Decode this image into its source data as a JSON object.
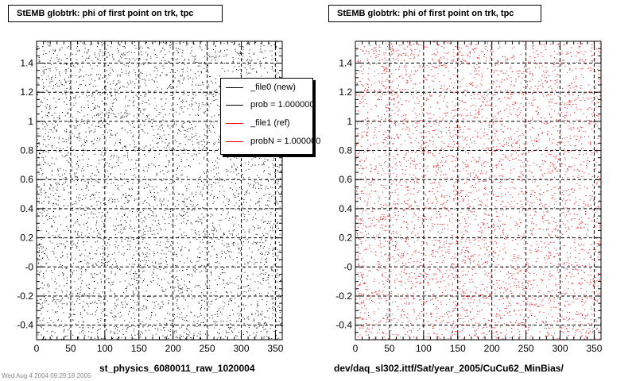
{
  "titles": {
    "left": "StEMB globtrk: phi of first point on trk, tpc",
    "right": "StEMB globtrk: phi of first point on trk, tpc"
  },
  "xtitles": {
    "left": "st_physics_6080011_raw_1020004",
    "right": "dev/daq_sl302.ittf/Sat/year_2005/CuCu62_MinBias/"
  },
  "footer": "Wed Aug  4  2004 09:29:18 2005",
  "legend": [
    {
      "label": "_file0 (new)",
      "color": "#000000"
    },
    {
      "label": "prob = 1.000000",
      "color": "#000000"
    },
    {
      "label": "_file1 (ref)",
      "color": "#ff0000"
    },
    {
      "label": "probN = 1.000000",
      "color": "#ff0000"
    }
  ],
  "chart_data": [
    {
      "type": "scatter",
      "title": "StEMB globtrk: phi of first point on trk, tpc",
      "xlabel": "st_physics_6080011_raw_1020004",
      "ylabel": "",
      "xlim": [
        0,
        360
      ],
      "ylim": [
        -0.5,
        1.55
      ],
      "xticks": [
        0,
        50,
        100,
        150,
        200,
        250,
        300,
        350
      ],
      "yticks": [
        -0.4,
        -0.2,
        0,
        0.2,
        0.4,
        0.6,
        0.8,
        1,
        1.2,
        1.4
      ],
      "ytick_labels": [
        "-0.4",
        "-0.2",
        "-0",
        "0.2",
        "0.4",
        "0.6",
        "0.8",
        "1",
        "1.2",
        "1.4"
      ],
      "grid": true,
      "legend_position": "top-right",
      "series": [
        {
          "name": "_file0 (new)",
          "color": "#000000",
          "points": 4500
        }
      ]
    },
    {
      "type": "scatter",
      "title": "StEMB globtrk: phi of first point on trk, tpc",
      "xlabel": "dev/daq_sl302.ittf/Sat/year_2005/CuCu62_MinBias/",
      "ylabel": "",
      "xlim": [
        0,
        360
      ],
      "ylim": [
        -0.5,
        1.55
      ],
      "xticks": [
        0,
        50,
        100,
        150,
        200,
        250,
        300,
        350
      ],
      "yticks": [
        -0.4,
        -0.2,
        0,
        0.2,
        0.4,
        0.6,
        0.8,
        1,
        1.2,
        1.4
      ],
      "ytick_labels": [
        "-0.4",
        "-0.2",
        "-0",
        "0.2",
        "0.4",
        "0.6",
        "0.8",
        "1",
        "1.2",
        "1.4"
      ],
      "grid": true,
      "series": [
        {
          "name": "_file1 (ref)",
          "color": "#ff0000",
          "points": 4500
        }
      ]
    }
  ]
}
